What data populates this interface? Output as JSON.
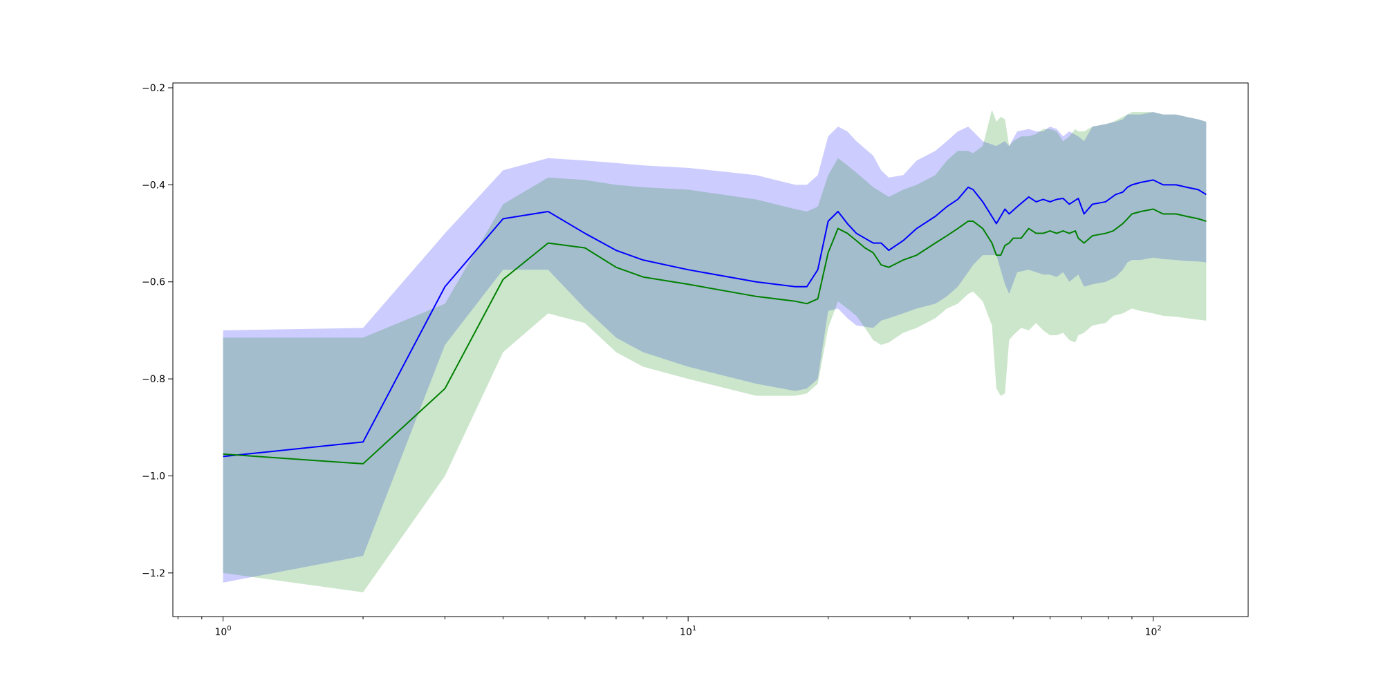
{
  "chart_data": {
    "type": "line",
    "title": "",
    "xlabel": "",
    "ylabel": "",
    "xscale": "log",
    "xlim": [
      0.78,
      160
    ],
    "ylim": [
      -1.29,
      -0.19
    ],
    "grid": false,
    "x_ticks": [
      {
        "value": 1,
        "base": "10",
        "exp": "0"
      },
      {
        "value": 10,
        "base": "10",
        "exp": "1"
      },
      {
        "value": 100,
        "base": "10",
        "exp": "2"
      }
    ],
    "y_ticks": [
      -1.2,
      -1.0,
      -0.8,
      -0.6,
      -0.4,
      -0.2
    ],
    "y_tick_labels": [
      "−1.2",
      "−1.0",
      "−0.8",
      "−0.6",
      "−0.4",
      "−0.2"
    ],
    "series": [
      {
        "color": "#0000ff",
        "band_color": "#0000ff",
        "band_opacity": 0.2,
        "x": [
          1,
          2,
          3,
          4,
          5,
          6,
          7,
          8,
          10,
          14,
          17,
          18,
          19,
          20,
          21,
          22,
          23,
          25,
          26,
          27,
          29,
          31,
          34,
          36,
          38,
          40,
          41,
          43,
          46,
          48,
          49,
          51,
          54,
          56,
          58,
          60,
          62,
          64,
          66,
          69,
          71,
          74,
          79,
          83,
          86,
          88,
          90,
          94,
          100,
          105,
          112,
          118,
          125,
          130
        ],
        "mean": [
          -0.96,
          -0.93,
          -0.61,
          -0.47,
          -0.455,
          -0.5,
          -0.535,
          -0.555,
          -0.575,
          -0.6,
          -0.61,
          -0.61,
          -0.575,
          -0.475,
          -0.455,
          -0.48,
          -0.5,
          -0.52,
          -0.52,
          -0.535,
          -0.515,
          -0.49,
          -0.465,
          -0.445,
          -0.43,
          -0.405,
          -0.41,
          -0.435,
          -0.48,
          -0.45,
          -0.46,
          -0.445,
          -0.425,
          -0.435,
          -0.43,
          -0.435,
          -0.43,
          -0.428,
          -0.44,
          -0.428,
          -0.46,
          -0.44,
          -0.435,
          -0.42,
          -0.415,
          -0.405,
          -0.4,
          -0.395,
          -0.39,
          -0.4,
          -0.4,
          -0.405,
          -0.41,
          -0.42
        ],
        "upper": [
          -0.7,
          -0.695,
          -0.5,
          -0.37,
          -0.345,
          -0.35,
          -0.355,
          -0.36,
          -0.365,
          -0.38,
          -0.4,
          -0.4,
          -0.38,
          -0.3,
          -0.28,
          -0.29,
          -0.31,
          -0.34,
          -0.37,
          -0.385,
          -0.38,
          -0.35,
          -0.33,
          -0.31,
          -0.29,
          -0.28,
          -0.29,
          -0.31,
          -0.32,
          -0.31,
          -0.32,
          -0.29,
          -0.285,
          -0.29,
          -0.29,
          -0.28,
          -0.285,
          -0.3,
          -0.29,
          -0.3,
          -0.31,
          -0.28,
          -0.275,
          -0.27,
          -0.265,
          -0.255,
          -0.255,
          -0.255,
          -0.25,
          -0.255,
          -0.255,
          -0.26,
          -0.265,
          -0.27
        ],
        "lower": [
          -1.22,
          -1.165,
          -0.73,
          -0.575,
          -0.575,
          -0.655,
          -0.715,
          -0.745,
          -0.775,
          -0.81,
          -0.825,
          -0.82,
          -0.8,
          -0.66,
          -0.655,
          -0.675,
          -0.69,
          -0.695,
          -0.68,
          -0.675,
          -0.665,
          -0.655,
          -0.645,
          -0.63,
          -0.61,
          -0.58,
          -0.565,
          -0.545,
          -0.545,
          -0.605,
          -0.625,
          -0.58,
          -0.575,
          -0.58,
          -0.585,
          -0.585,
          -0.59,
          -0.58,
          -0.6,
          -0.585,
          -0.61,
          -0.605,
          -0.6,
          -0.59,
          -0.575,
          -0.56,
          -0.555,
          -0.555,
          -0.55,
          -0.553,
          -0.555,
          -0.557,
          -0.558,
          -0.56
        ]
      },
      {
        "color": "#008000",
        "band_color": "#008000",
        "band_opacity": 0.2,
        "x": [
          1,
          2,
          3,
          4,
          5,
          6,
          7,
          8,
          10,
          14,
          17,
          18,
          19,
          20,
          21,
          22,
          23,
          24,
          25,
          26,
          27,
          29,
          31,
          34,
          36,
          38,
          40,
          41,
          43,
          45,
          46,
          47,
          48,
          49,
          50,
          52,
          54,
          56,
          58,
          60,
          62,
          64,
          66,
          68,
          69,
          71,
          74,
          79,
          82,
          86,
          88,
          90,
          94,
          100,
          105,
          112,
          118,
          125,
          130
        ],
        "mean": [
          -0.955,
          -0.975,
          -0.82,
          -0.595,
          -0.52,
          -0.53,
          -0.57,
          -0.59,
          -0.605,
          -0.63,
          -0.64,
          -0.645,
          -0.635,
          -0.54,
          -0.49,
          -0.5,
          -0.515,
          -0.53,
          -0.54,
          -0.565,
          -0.57,
          -0.555,
          -0.545,
          -0.52,
          -0.505,
          -0.49,
          -0.475,
          -0.475,
          -0.49,
          -0.52,
          -0.545,
          -0.545,
          -0.525,
          -0.52,
          -0.51,
          -0.51,
          -0.49,
          -0.5,
          -0.5,
          -0.495,
          -0.5,
          -0.495,
          -0.5,
          -0.495,
          -0.51,
          -0.52,
          -0.505,
          -0.5,
          -0.495,
          -0.48,
          -0.47,
          -0.46,
          -0.455,
          -0.45,
          -0.46,
          -0.46,
          -0.465,
          -0.47,
          -0.475
        ],
        "upper": [
          -0.715,
          -0.715,
          -0.645,
          -0.44,
          -0.385,
          -0.39,
          -0.4,
          -0.405,
          -0.41,
          -0.43,
          -0.45,
          -0.455,
          -0.445,
          -0.38,
          -0.345,
          -0.36,
          -0.375,
          -0.39,
          -0.405,
          -0.415,
          -0.425,
          -0.41,
          -0.4,
          -0.38,
          -0.35,
          -0.33,
          -0.33,
          -0.335,
          -0.32,
          -0.245,
          -0.27,
          -0.26,
          -0.265,
          -0.32,
          -0.31,
          -0.3,
          -0.3,
          -0.295,
          -0.285,
          -0.285,
          -0.29,
          -0.31,
          -0.3,
          -0.285,
          -0.29,
          -0.29,
          -0.28,
          -0.275,
          -0.27,
          -0.26,
          -0.255,
          -0.25,
          -0.25,
          -0.25,
          -0.255,
          -0.255,
          -0.26,
          -0.265,
          -0.27
        ],
        "lower": [
          -1.2,
          -1.24,
          -1.0,
          -0.745,
          -0.665,
          -0.685,
          -0.745,
          -0.775,
          -0.8,
          -0.835,
          -0.835,
          -0.83,
          -0.81,
          -0.695,
          -0.64,
          -0.655,
          -0.67,
          -0.695,
          -0.72,
          -0.73,
          -0.725,
          -0.705,
          -0.695,
          -0.675,
          -0.655,
          -0.645,
          -0.625,
          -0.62,
          -0.64,
          -0.69,
          -0.82,
          -0.835,
          -0.83,
          -0.72,
          -0.71,
          -0.695,
          -0.7,
          -0.685,
          -0.7,
          -0.71,
          -0.71,
          -0.705,
          -0.72,
          -0.725,
          -0.71,
          -0.705,
          -0.69,
          -0.685,
          -0.67,
          -0.665,
          -0.66,
          -0.655,
          -0.66,
          -0.665,
          -0.67,
          -0.672,
          -0.675,
          -0.678,
          -0.68
        ]
      }
    ]
  }
}
